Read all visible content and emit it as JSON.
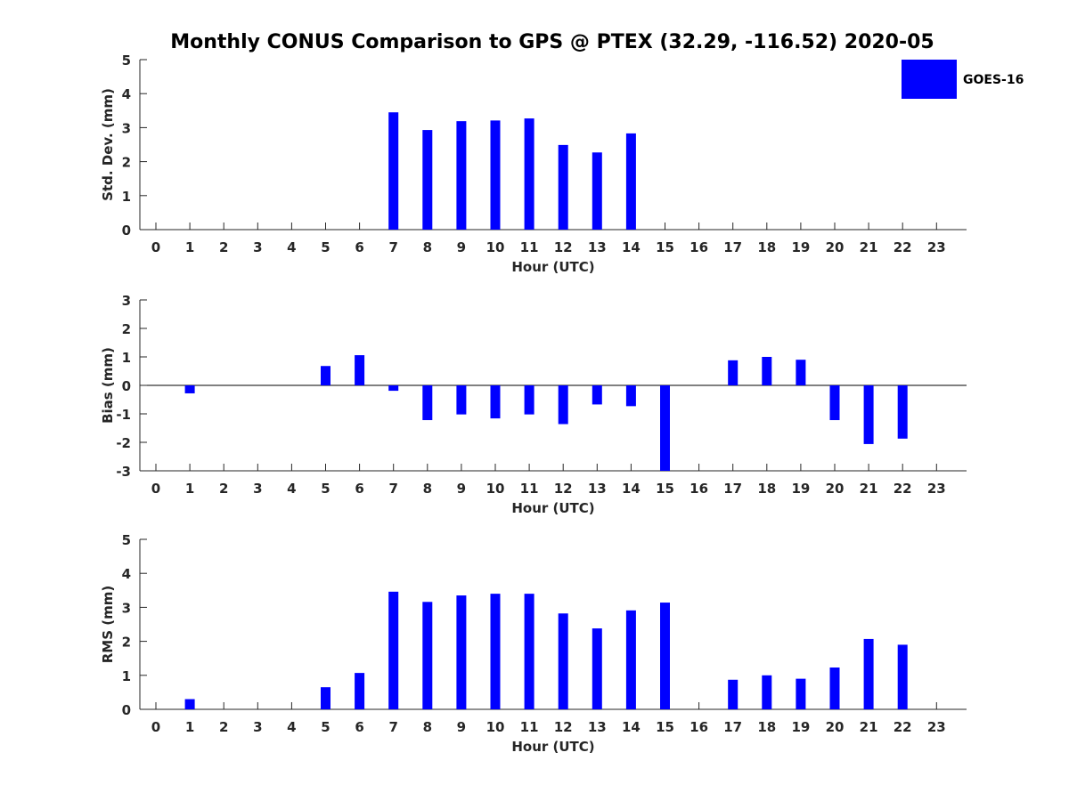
{
  "title": "Monthly CONUS Comparison to GPS @ PTEX (32.29, -116.52) 2020-05",
  "legend": {
    "label": "GOES-16",
    "color": "#0000ff",
    "placement": "top-right"
  },
  "colors": {
    "bar": "#0000ff",
    "axis": "#262626"
  },
  "chart_data": [
    {
      "type": "bar",
      "ylabel": "Std. Dev. (mm)",
      "xlabel": "Hour (UTC)",
      "ylim": [
        0,
        5
      ],
      "yticks": [
        "0",
        "1",
        "2",
        "3",
        "4",
        "5"
      ],
      "categories": [
        "0",
        "1",
        "2",
        "3",
        "4",
        "5",
        "6",
        "7",
        "8",
        "9",
        "10",
        "11",
        "12",
        "13",
        "14",
        "15",
        "16",
        "17",
        "18",
        "19",
        "20",
        "21",
        "22",
        "23"
      ],
      "series": [
        {
          "name": "GOES-16",
          "values": [
            null,
            null,
            null,
            null,
            null,
            null,
            null,
            3.45,
            2.93,
            3.19,
            3.21,
            3.27,
            2.49,
            2.27,
            2.83,
            null,
            null,
            null,
            null,
            null,
            null,
            null,
            null,
            null
          ]
        }
      ]
    },
    {
      "type": "bar",
      "ylabel": "Bias (mm)",
      "xlabel": "Hour (UTC)",
      "ylim": [
        -3,
        3
      ],
      "yticks": [
        "-3",
        "-2",
        "-1",
        "0",
        "1",
        "2",
        "3"
      ],
      "categories": [
        "0",
        "1",
        "2",
        "3",
        "4",
        "5",
        "6",
        "7",
        "8",
        "9",
        "10",
        "11",
        "12",
        "13",
        "14",
        "15",
        "16",
        "17",
        "18",
        "19",
        "20",
        "21",
        "22",
        "23"
      ],
      "series": [
        {
          "name": "GOES-16",
          "values": [
            null,
            -0.28,
            null,
            null,
            null,
            0.68,
            1.06,
            -0.19,
            -1.22,
            -1.02,
            -1.16,
            -1.02,
            -1.36,
            -0.67,
            -0.73,
            -3.0,
            null,
            0.88,
            1.0,
            0.9,
            -1.22,
            -2.06,
            -1.87,
            null
          ]
        }
      ]
    },
    {
      "type": "bar",
      "ylabel": "RMS (mm)",
      "xlabel": "Hour (UTC)",
      "ylim": [
        0,
        5
      ],
      "yticks": [
        "0",
        "1",
        "2",
        "3",
        "4",
        "5"
      ],
      "categories": [
        "0",
        "1",
        "2",
        "3",
        "4",
        "5",
        "6",
        "7",
        "8",
        "9",
        "10",
        "11",
        "12",
        "13",
        "14",
        "15",
        "16",
        "17",
        "18",
        "19",
        "20",
        "21",
        "22",
        "23"
      ],
      "series": [
        {
          "name": "GOES-16",
          "values": [
            null,
            0.3,
            null,
            null,
            null,
            0.65,
            1.07,
            3.46,
            3.16,
            3.35,
            3.4,
            3.4,
            2.82,
            2.38,
            2.91,
            3.14,
            null,
            0.87,
            1.0,
            0.9,
            1.23,
            2.07,
            1.9,
            null
          ]
        }
      ]
    }
  ]
}
